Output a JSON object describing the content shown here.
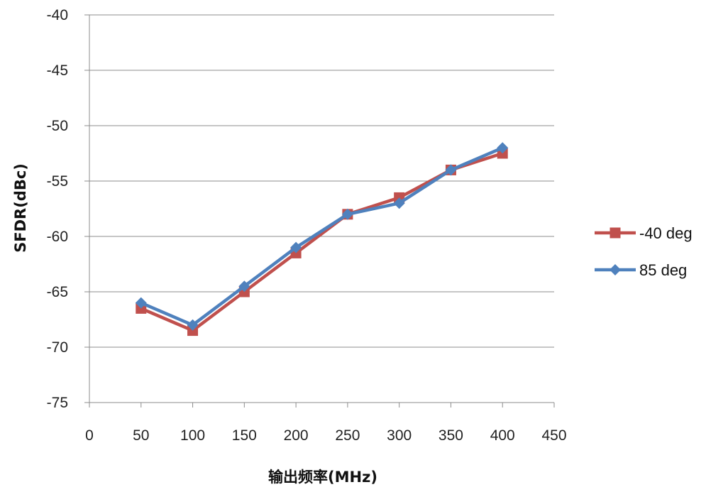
{
  "chart_data": {
    "type": "line",
    "title": "",
    "xlabel": "输出频率(MHz)",
    "ylabel": "SFDR(dBc)",
    "xlim": [
      0,
      450
    ],
    "ylim": [
      -75,
      -40
    ],
    "xticks": [
      "0",
      "50",
      "100",
      "150",
      "200",
      "250",
      "300",
      "350",
      "400",
      "450"
    ],
    "yticks": [
      "-40",
      "-45",
      "-50",
      "-55",
      "-60",
      "-65",
      "-70",
      "-75"
    ],
    "grid": "horizontal",
    "legend_position": "right",
    "x": [
      50,
      100,
      150,
      200,
      250,
      300,
      350,
      400
    ],
    "series": [
      {
        "name": "-40 deg",
        "marker": "square",
        "color": "#c0504d",
        "values": [
          -66.5,
          -68.5,
          -65.0,
          -61.5,
          -58.0,
          -56.5,
          -54.0,
          -52.5
        ]
      },
      {
        "name": "85 deg",
        "marker": "diamond",
        "color": "#4f81bd",
        "values": [
          -66.0,
          -68.0,
          -64.5,
          -61.0,
          -58.0,
          -57.0,
          -54.0,
          -52.0
        ]
      }
    ]
  }
}
